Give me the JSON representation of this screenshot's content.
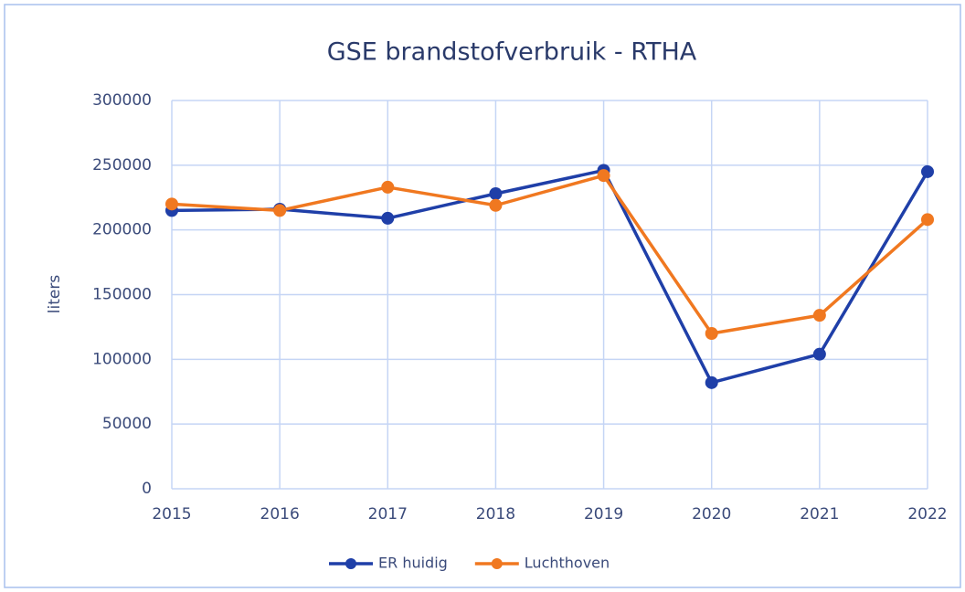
{
  "chart_data": {
    "type": "line",
    "title": "GSE brandstofverbruik - RTHA",
    "y_label": "liters",
    "x": [
      2015,
      2016,
      2017,
      2018,
      2019,
      2020,
      2021,
      2022
    ],
    "xlim": [
      2015,
      2022
    ],
    "xticks": [
      2015,
      2016,
      2017,
      2018,
      2019,
      2020,
      2021,
      2022
    ],
    "ylim": [
      0,
      300000
    ],
    "yticks": [
      0,
      50000,
      100000,
      150000,
      200000,
      250000,
      300000
    ],
    "grid": true,
    "legend": "bottom",
    "series": [
      {
        "name": "ER huidig",
        "color": "#1f3fa8",
        "values": [
          215000,
          216000,
          209000,
          228000,
          246000,
          82000,
          104000,
          245000
        ]
      },
      {
        "name": "Luchthoven",
        "color": "#f07820",
        "values": [
          220000,
          215000,
          233000,
          219000,
          242000,
          120000,
          134000,
          208000
        ]
      }
    ]
  }
}
